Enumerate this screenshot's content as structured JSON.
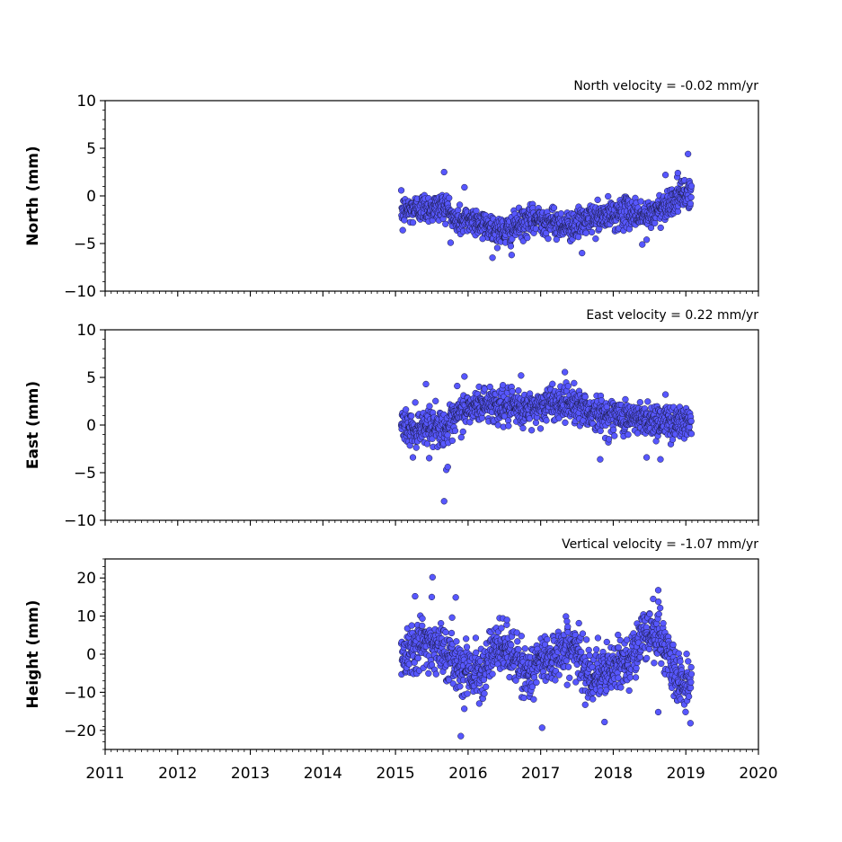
{
  "chart_data": {
    "type": "scatter",
    "x_axis": {
      "ticks": [
        "2011",
        "2012",
        "2013",
        "2014",
        "2015",
        "2016",
        "2017",
        "2018",
        "2019",
        "2020"
      ],
      "xlim": [
        2011,
        2020
      ]
    },
    "marker_color": "#5757ff",
    "marker_edge": "#1a1a40",
    "panels": [
      {
        "id": "north",
        "ylabel": "North (mm)",
        "velocity_label": "North velocity = -0.02 mm/yr",
        "ylim": [
          -10,
          10
        ],
        "yticks": [
          -10,
          -5,
          0,
          5,
          10
        ],
        "ytick_labels": [
          "−10",
          "−5",
          "0",
          "5",
          "10"
        ],
        "series": {
          "x": [
            2015.1,
            2015.2,
            2015.3,
            2015.4,
            2015.5,
            2015.6,
            2015.7,
            2015.8,
            2015.9,
            2016.0,
            2016.1,
            2016.2,
            2016.3,
            2016.4,
            2016.5,
            2016.6,
            2016.7,
            2016.8,
            2016.9,
            2017.0,
            2017.1,
            2017.2,
            2017.3,
            2017.4,
            2017.5,
            2017.6,
            2017.7,
            2017.8,
            2017.9,
            2018.0,
            2018.1,
            2018.2,
            2018.3,
            2018.4,
            2018.5,
            2018.6,
            2018.7,
            2018.8,
            2018.9,
            2019.0,
            2019.05
          ],
          "center": [
            -1.5,
            -1.5,
            -1.3,
            -1.2,
            -1.3,
            -1.2,
            -1.0,
            -2.5,
            -2.7,
            -2.5,
            -2.5,
            -3.0,
            -3.2,
            -3.6,
            -3.8,
            -3.5,
            -3.0,
            -2.8,
            -2.6,
            -2.4,
            -2.6,
            -2.8,
            -3.0,
            -3.2,
            -3.0,
            -2.6,
            -2.4,
            -2.3,
            -2.2,
            -2.0,
            -1.8,
            -1.7,
            -1.8,
            -2.0,
            -2.2,
            -1.6,
            -1.0,
            -0.6,
            -0.2,
            0.2,
            0.3
          ],
          "spread": 1.0,
          "outliers": [
            [
              2015.67,
              2.5
            ],
            [
              2015.95,
              0.9
            ],
            [
              2016.2,
              -4.5
            ],
            [
              2016.6,
              -6.2
            ],
            [
              2017.57,
              -6.0
            ],
            [
              2018.4,
              -5.1
            ],
            [
              2018.72,
              2.2
            ],
            [
              2018.89,
              2.4
            ],
            [
              2019.03,
              4.4
            ],
            [
              2015.1,
              -3.6
            ],
            [
              2018.46,
              -4.6
            ]
          ]
        }
      },
      {
        "id": "east",
        "ylabel": "East (mm)",
        "velocity_label": "East velocity = 0.22 mm/yr",
        "ylim": [
          -10,
          10
        ],
        "yticks": [
          -10,
          -5,
          0,
          5,
          10
        ],
        "ytick_labels": [
          "−10",
          "−5",
          "0",
          "5",
          "10"
        ],
        "series": {
          "x": [
            2015.1,
            2015.2,
            2015.3,
            2015.4,
            2015.5,
            2015.6,
            2015.7,
            2015.8,
            2015.9,
            2016.0,
            2016.1,
            2016.2,
            2016.3,
            2016.4,
            2016.5,
            2016.6,
            2016.7,
            2016.8,
            2016.9,
            2017.0,
            2017.1,
            2017.2,
            2017.3,
            2017.4,
            2017.5,
            2017.6,
            2017.7,
            2017.8,
            2017.9,
            2018.0,
            2018.1,
            2018.2,
            2018.3,
            2018.4,
            2018.5,
            2018.6,
            2018.7,
            2018.8,
            2018.9,
            2019.0,
            2019.05
          ],
          "center": [
            0.0,
            -0.4,
            -0.3,
            0.0,
            0.0,
            -0.2,
            -0.3,
            0.2,
            1.4,
            1.6,
            1.9,
            2.2,
            2.3,
            2.1,
            2.0,
            1.8,
            1.6,
            1.6,
            1.8,
            2.0,
            2.2,
            2.4,
            2.5,
            2.4,
            2.1,
            1.8,
            1.3,
            1.0,
            1.0,
            1.0,
            0.9,
            0.8,
            0.6,
            0.6,
            0.6,
            0.5,
            0.4,
            0.4,
            0.4,
            0.3,
            0.3
          ],
          "spread": 1.2,
          "outliers": [
            [
              2015.67,
              -8.0
            ],
            [
              2015.7,
              -4.7
            ],
            [
              2015.72,
              -4.4
            ],
            [
              2015.24,
              -3.4
            ],
            [
              2015.42,
              4.3
            ],
            [
              2015.85,
              4.1
            ],
            [
              2015.95,
              5.1
            ],
            [
              2016.73,
              5.2
            ],
            [
              2017.82,
              -3.6
            ],
            [
              2018.46,
              -3.4
            ],
            [
              2018.65,
              -3.6
            ],
            [
              2018.72,
              3.2
            ],
            [
              2017.46,
              4.4
            ]
          ]
        }
      },
      {
        "id": "height",
        "ylabel": "Height (mm)",
        "velocity_label": "Vertical velocity = -1.07 mm/yr",
        "ylim": [
          -25,
          25
        ],
        "yticks": [
          -20,
          -10,
          0,
          10,
          20
        ],
        "ytick_labels": [
          "−20",
          "−10",
          "0",
          "10",
          "20"
        ],
        "series": {
          "x": [
            2015.1,
            2015.2,
            2015.3,
            2015.4,
            2015.5,
            2015.6,
            2015.7,
            2015.8,
            2015.9,
            2016.0,
            2016.1,
            2016.2,
            2016.3,
            2016.4,
            2016.5,
            2016.6,
            2016.7,
            2016.8,
            2016.9,
            2017.0,
            2017.1,
            2017.2,
            2017.3,
            2017.4,
            2017.5,
            2017.6,
            2017.7,
            2017.8,
            2017.9,
            2018.0,
            2018.1,
            2018.2,
            2018.3,
            2018.4,
            2018.5,
            2018.6,
            2018.7,
            2018.8,
            2018.9,
            2019.0,
            2019.05
          ],
          "center": [
            0.0,
            2.0,
            3.0,
            2.5,
            3.0,
            2.0,
            0.0,
            -1.5,
            -3.0,
            -4.0,
            -4.5,
            -3.5,
            -1.0,
            1.0,
            2.0,
            0.0,
            -3.0,
            -5.0,
            -4.0,
            -2.0,
            -1.0,
            0.0,
            1.0,
            2.0,
            0.0,
            -3.0,
            -5.0,
            -5.5,
            -5.0,
            -4.0,
            -3.0,
            -1.0,
            1.0,
            4.0,
            6.0,
            6.0,
            2.0,
            -3.0,
            -7.0,
            -8.0,
            -8.0
          ],
          "spread": 4.5,
          "outliers": [
            [
              2015.51,
              20.2
            ],
            [
              2015.9,
              -21.5
            ],
            [
              2017.02,
              -19.3
            ],
            [
              2017.88,
              -17.8
            ],
            [
              2015.27,
              15.2
            ],
            [
              2015.5,
              15.0
            ],
            [
              2018.62,
              16.8
            ],
            [
              2018.62,
              -15.2
            ],
            [
              2018.55,
              14.5
            ],
            [
              2015.83,
              14.9
            ]
          ]
        }
      }
    ]
  }
}
